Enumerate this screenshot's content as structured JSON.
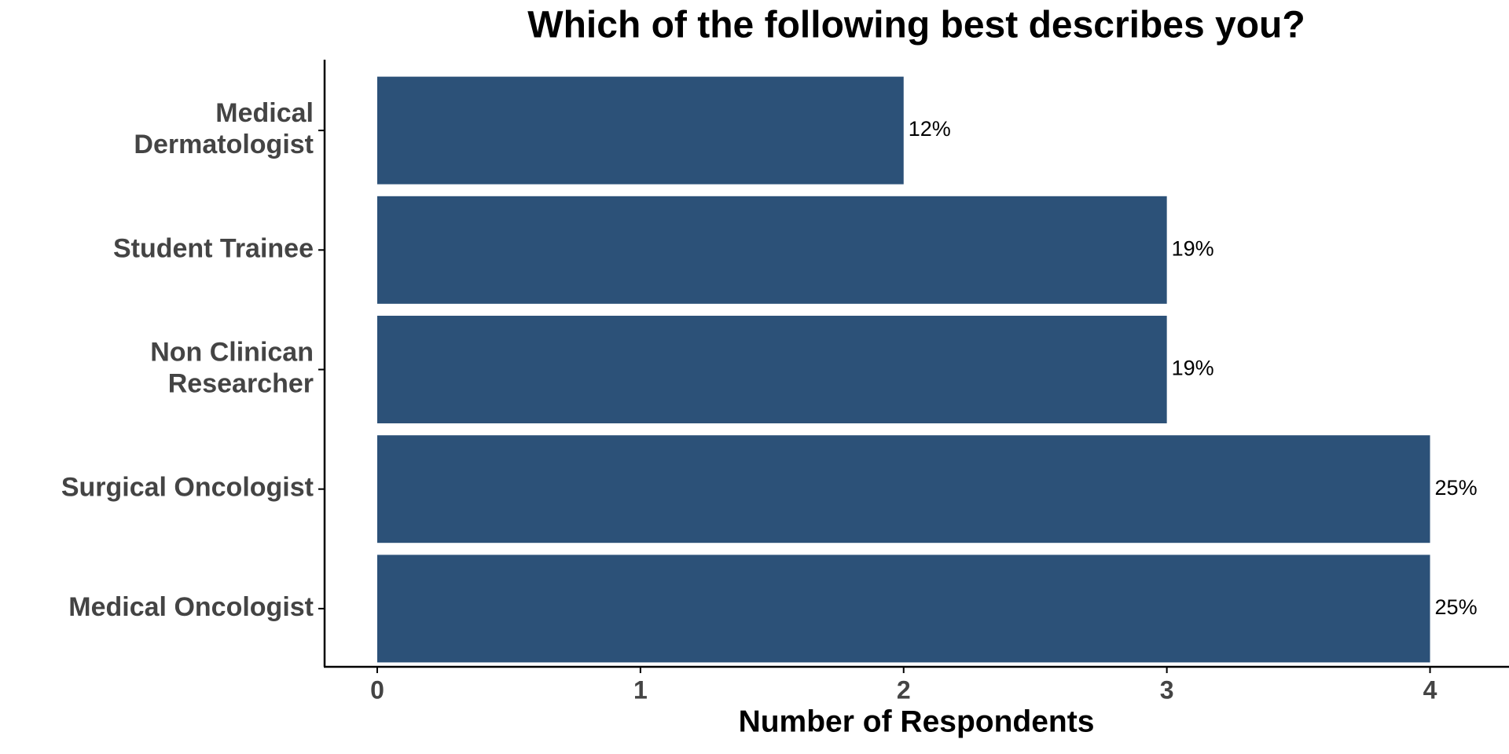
{
  "chart_data": {
    "type": "hbar",
    "title": "Which of the following best describes you?",
    "x_label": "Number of Respondents",
    "categories": [
      "Medical\nDermatologist",
      "Student Trainee",
      "Non Clinican\nResearcher",
      "Surgical Oncologist",
      "Medical Oncologist"
    ],
    "values": [
      2,
      3,
      3,
      4,
      4
    ],
    "annotations": [
      "12%",
      "19%",
      "19%",
      "25%",
      "25%"
    ],
    "color": "#2c5178",
    "xlim": [
      -0.2,
      4.3
    ],
    "xticks": [
      0,
      1,
      2,
      3,
      4
    ],
    "grid": false
  }
}
